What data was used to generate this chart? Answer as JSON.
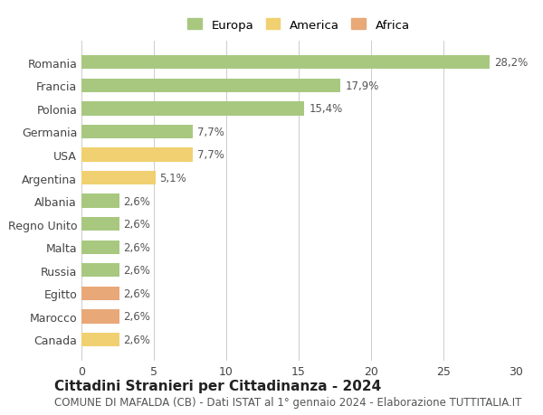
{
  "countries": [
    "Romania",
    "Francia",
    "Polonia",
    "Germania",
    "USA",
    "Argentina",
    "Albania",
    "Regno Unito",
    "Malta",
    "Russia",
    "Egitto",
    "Marocco",
    "Canada"
  ],
  "values": [
    28.2,
    17.9,
    15.4,
    7.7,
    7.7,
    5.1,
    2.6,
    2.6,
    2.6,
    2.6,
    2.6,
    2.6,
    2.6
  ],
  "labels": [
    "28,2%",
    "17,9%",
    "15,4%",
    "7,7%",
    "7,7%",
    "5,1%",
    "2,6%",
    "2,6%",
    "2,6%",
    "2,6%",
    "2,6%",
    "2,6%",
    "2,6%"
  ],
  "continents": [
    "Europa",
    "Europa",
    "Europa",
    "Europa",
    "America",
    "America",
    "Europa",
    "Europa",
    "Europa",
    "Europa",
    "Africa",
    "Africa",
    "America"
  ],
  "colors": {
    "Europa": "#a8c880",
    "America": "#f0d070",
    "Africa": "#e8a878"
  },
  "legend_colors": {
    "Europa": "#a8c880",
    "America": "#f0d070",
    "Africa": "#e8a878"
  },
  "title": "Cittadini Stranieri per Cittadinanza - 2024",
  "subtitle": "COMUNE DI MAFALDA (CB) - Dati ISTAT al 1° gennaio 2024 - Elaborazione TUTTITALIA.IT",
  "xlim": [
    0,
    30
  ],
  "xticks": [
    0,
    5,
    10,
    15,
    20,
    25,
    30
  ],
  "background_color": "#ffffff",
  "grid_color": "#cccccc",
  "bar_height": 0.6,
  "title_fontsize": 11,
  "subtitle_fontsize": 8.5,
  "tick_fontsize": 9,
  "label_fontsize": 8.5
}
